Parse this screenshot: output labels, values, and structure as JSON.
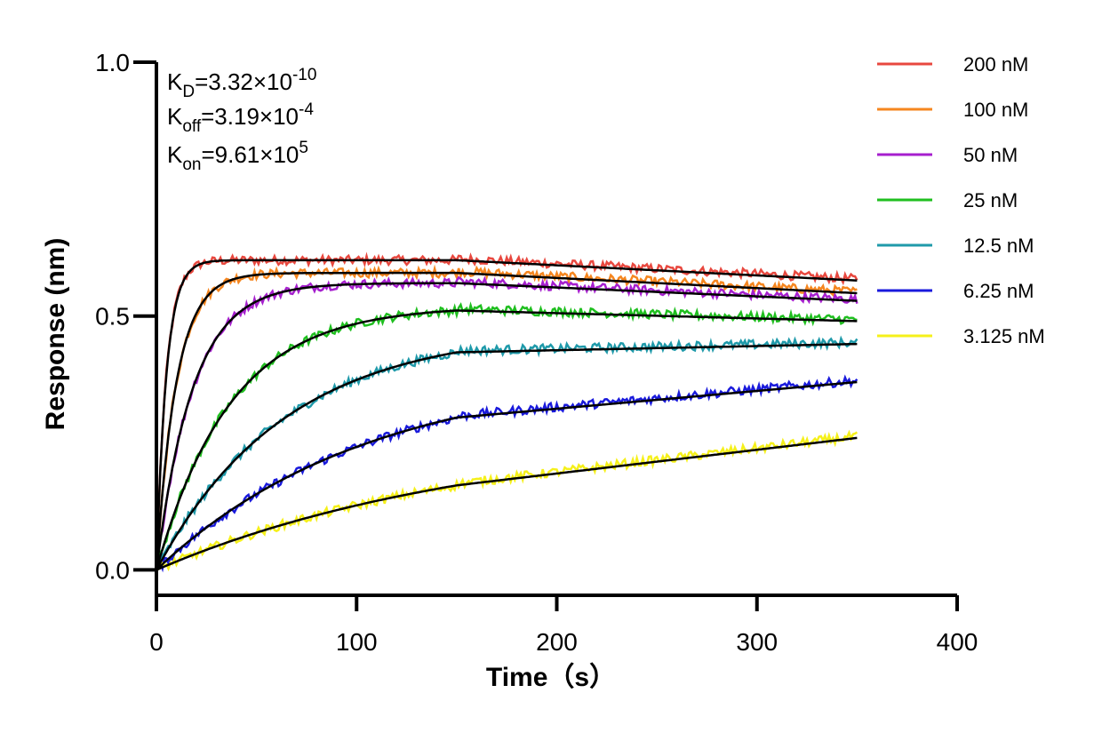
{
  "chart_data": {
    "type": "line",
    "title": "",
    "xlabel": "Time（s）",
    "ylabel": "Response (nm)",
    "xlim": [
      0,
      400
    ],
    "ylim": [
      -0.05,
      1.0
    ],
    "xticks": [
      0,
      100,
      200,
      300,
      400
    ],
    "yticks": [
      0.0,
      0.5,
      1.0
    ],
    "xtick_labels": [
      "0",
      "100",
      "200",
      "300",
      "400"
    ],
    "ytick_labels": [
      "0.0",
      "0.5",
      "1.0"
    ],
    "grid": false,
    "legend_position": "top-right",
    "association_end": 150,
    "dissociation_end": 350,
    "annotations": {
      "kd": {
        "label": "K",
        "sub": "D",
        "eq": "=3.32×10",
        "sup": "-10"
      },
      "koff": {
        "label": "K",
        "sub": "off",
        "eq": "=3.19×10",
        "sup": "-4"
      },
      "kon": {
        "label": "K",
        "sub": "on",
        "eq": "=9.61×10",
        "sup": "5"
      }
    },
    "series": [
      {
        "name": "200 nM",
        "color": "#e8483f",
        "plateau": 0.61,
        "k_obs": 0.2,
        "end_value": 0.57
      },
      {
        "name": "100 nM",
        "color": "#f5861f",
        "plateau": 0.585,
        "k_obs": 0.1,
        "end_value": 0.545
      },
      {
        "name": "50 nM",
        "color": "#a61fce",
        "plateau": 0.565,
        "k_obs": 0.055,
        "end_value": 0.53
      },
      {
        "name": "25 nM",
        "color": "#1fbf1f",
        "plateau": 0.52,
        "k_obs": 0.027,
        "end_value": 0.49
      },
      {
        "name": "12.5 nM",
        "color": "#1f9aaa",
        "plateau": 0.475,
        "k_obs": 0.0155,
        "end_value": 0.445
      },
      {
        "name": "6.25 nM",
        "color": "#1a1adc",
        "plateau": 0.395,
        "k_obs": 0.0095,
        "end_value": 0.37
      },
      {
        "name": "3.125 nM",
        "color": "#f5f01a",
        "plateau": 0.275,
        "k_obs": 0.0062,
        "end_value": 0.26
      }
    ],
    "fit_color": "#000000"
  }
}
